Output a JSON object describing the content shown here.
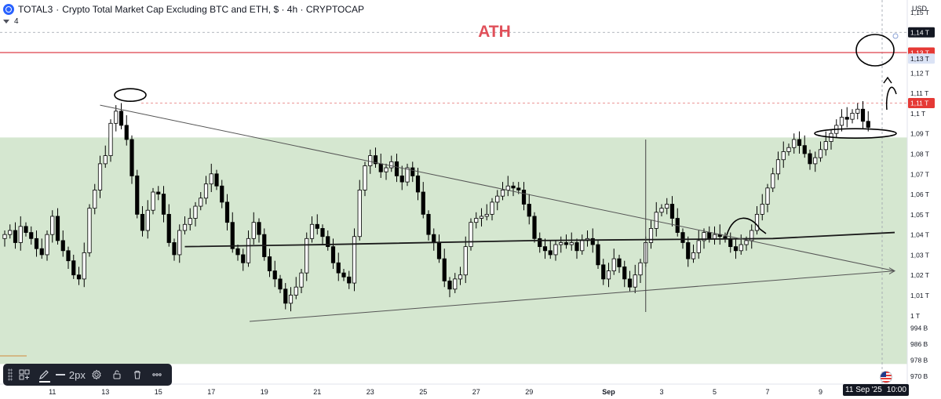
{
  "header": {
    "symbol": "TOTAL3",
    "title": "Crypto Total Market Cap Excluding BTC and ETH, $ · 4h · CRYPTOCAP",
    "indicator_count": "4"
  },
  "currency": "USD",
  "annotation_ath": "ATH",
  "toolbar": {
    "stroke_width": "2px"
  },
  "bottom_tag": {
    "date": "11 Sep '25",
    "time": "10:00"
  },
  "colors": {
    "up": "#ffffff",
    "down": "#000000",
    "zone": "#d5e7d0",
    "ath": "#e0505a",
    "tag_dark": "#131722",
    "tag_red": "#e53935"
  },
  "chart_data": {
    "type": "candlestick",
    "title": "",
    "ylim": [
      966,
      1156
    ],
    "y_ticks": [
      {
        "label": "1,15 T",
        "value": 1150
      },
      {
        "label": "1,14 T",
        "value": 1140
      },
      {
        "label": "1,13 T",
        "value": 1130
      },
      {
        "label": "1,12 T",
        "value": 1120
      },
      {
        "label": "1,11 T",
        "value": 1110
      },
      {
        "label": "1,1 T",
        "value": 1100
      },
      {
        "label": "1,09 T",
        "value": 1090
      },
      {
        "label": "1,08 T",
        "value": 1080
      },
      {
        "label": "1,07 T",
        "value": 1070
      },
      {
        "label": "1,06 T",
        "value": 1060
      },
      {
        "label": "1,05 T",
        "value": 1050
      },
      {
        "label": "1,04 T",
        "value": 1040
      },
      {
        "label": "1,03 T",
        "value": 1030
      },
      {
        "label": "1,02 T",
        "value": 1020
      },
      {
        "label": "1,01 T",
        "value": 1010
      },
      {
        "label": "1 T",
        "value": 1000
      },
      {
        "label": "994 B",
        "value": 994
      },
      {
        "label": "986 B",
        "value": 986
      },
      {
        "label": "978 B",
        "value": 978
      },
      {
        "label": "970 B",
        "value": 970
      }
    ],
    "price_tags": [
      {
        "label": "1,14 T",
        "value": 1140,
        "style": "dark"
      },
      {
        "label": "1,13 T",
        "value": 1130,
        "style": "red"
      },
      {
        "label": "1,13 T",
        "value": 1127,
        "style": "light"
      },
      {
        "label": "1,11 T",
        "value": 1105,
        "style": "red"
      }
    ],
    "x_ticks": [
      {
        "label": "11",
        "i": 9
      },
      {
        "label": "13",
        "i": 19
      },
      {
        "label": "15",
        "i": 29
      },
      {
        "label": "17",
        "i": 39
      },
      {
        "label": "19",
        "i": 49
      },
      {
        "label": "21",
        "i": 59
      },
      {
        "label": "23",
        "i": 69
      },
      {
        "label": "25",
        "i": 79
      },
      {
        "label": "27",
        "i": 89
      },
      {
        "label": "29",
        "i": 99
      },
      {
        "label": "Sep",
        "i": 114
      },
      {
        "label": "3",
        "i": 124
      },
      {
        "label": "5",
        "i": 134
      },
      {
        "label": "7",
        "i": 144
      },
      {
        "label": "9",
        "i": 154
      }
    ],
    "candles": {
      "close": [
        1040,
        1042,
        1036,
        1044,
        1041,
        1038,
        1033,
        1030,
        1040,
        1049,
        1037,
        1032,
        1027,
        1020,
        1018,
        1031,
        1053,
        1062,
        1075,
        1079,
        1095,
        1101,
        1094,
        1087,
        1069,
        1050,
        1042,
        1052,
        1061,
        1060,
        1050,
        1036,
        1030,
        1042,
        1045,
        1048,
        1054,
        1058,
        1065,
        1070,
        1064,
        1056,
        1046,
        1033,
        1030,
        1026,
        1038,
        1046,
        1040,
        1029,
        1022,
        1018,
        1013,
        1006,
        1010,
        1014,
        1021,
        1038,
        1045,
        1043,
        1039,
        1034,
        1026,
        1021,
        1019,
        1016,
        1039,
        1062,
        1074,
        1079,
        1075,
        1071,
        1073,
        1076,
        1069,
        1066,
        1073,
        1069,
        1061,
        1050,
        1040,
        1036,
        1028,
        1017,
        1013,
        1018,
        1020,
        1034,
        1046,
        1048,
        1049,
        1050,
        1056,
        1059,
        1062,
        1064,
        1063,
        1062,
        1055,
        1049,
        1038,
        1034,
        1032,
        1030,
        1035,
        1036,
        1035,
        1036,
        1032,
        1037,
        1038,
        1035,
        1025,
        1018,
        1022,
        1028,
        1024,
        1018,
        1014,
        1020,
        1026,
        1036,
        1043,
        1051,
        1053,
        1055,
        1048,
        1041,
        1036,
        1028,
        1031,
        1037,
        1041,
        1038,
        1040,
        1039,
        1038,
        1034,
        1032,
        1035,
        1037,
        1042,
        1050,
        1055,
        1063,
        1070,
        1077,
        1081,
        1083,
        1087,
        1084,
        1080,
        1075,
        1078,
        1082,
        1086,
        1090,
        1094,
        1098,
        1097,
        1100,
        1102,
        1096,
        1093
      ]
    },
    "zone": [
      966,
      1088
    ],
    "ath_line": 1130,
    "ma_line": [
      {
        "i": 34,
        "v": 1034
      },
      {
        "i": 60,
        "v": 1035
      },
      {
        "i": 100,
        "v": 1037
      },
      {
        "i": 145,
        "v": 1038
      },
      {
        "i": 168,
        "v": 1041
      }
    ],
    "triangle": {
      "upper": [
        {
          "i": 18,
          "v": 1104
        },
        {
          "i": 168,
          "v": 1022
        }
      ],
      "lower": [
        {
          "i": 31,
          "v": 997
        },
        {
          "i": 168,
          "v": 1022
        }
      ]
    },
    "marker_vline": 121
  }
}
